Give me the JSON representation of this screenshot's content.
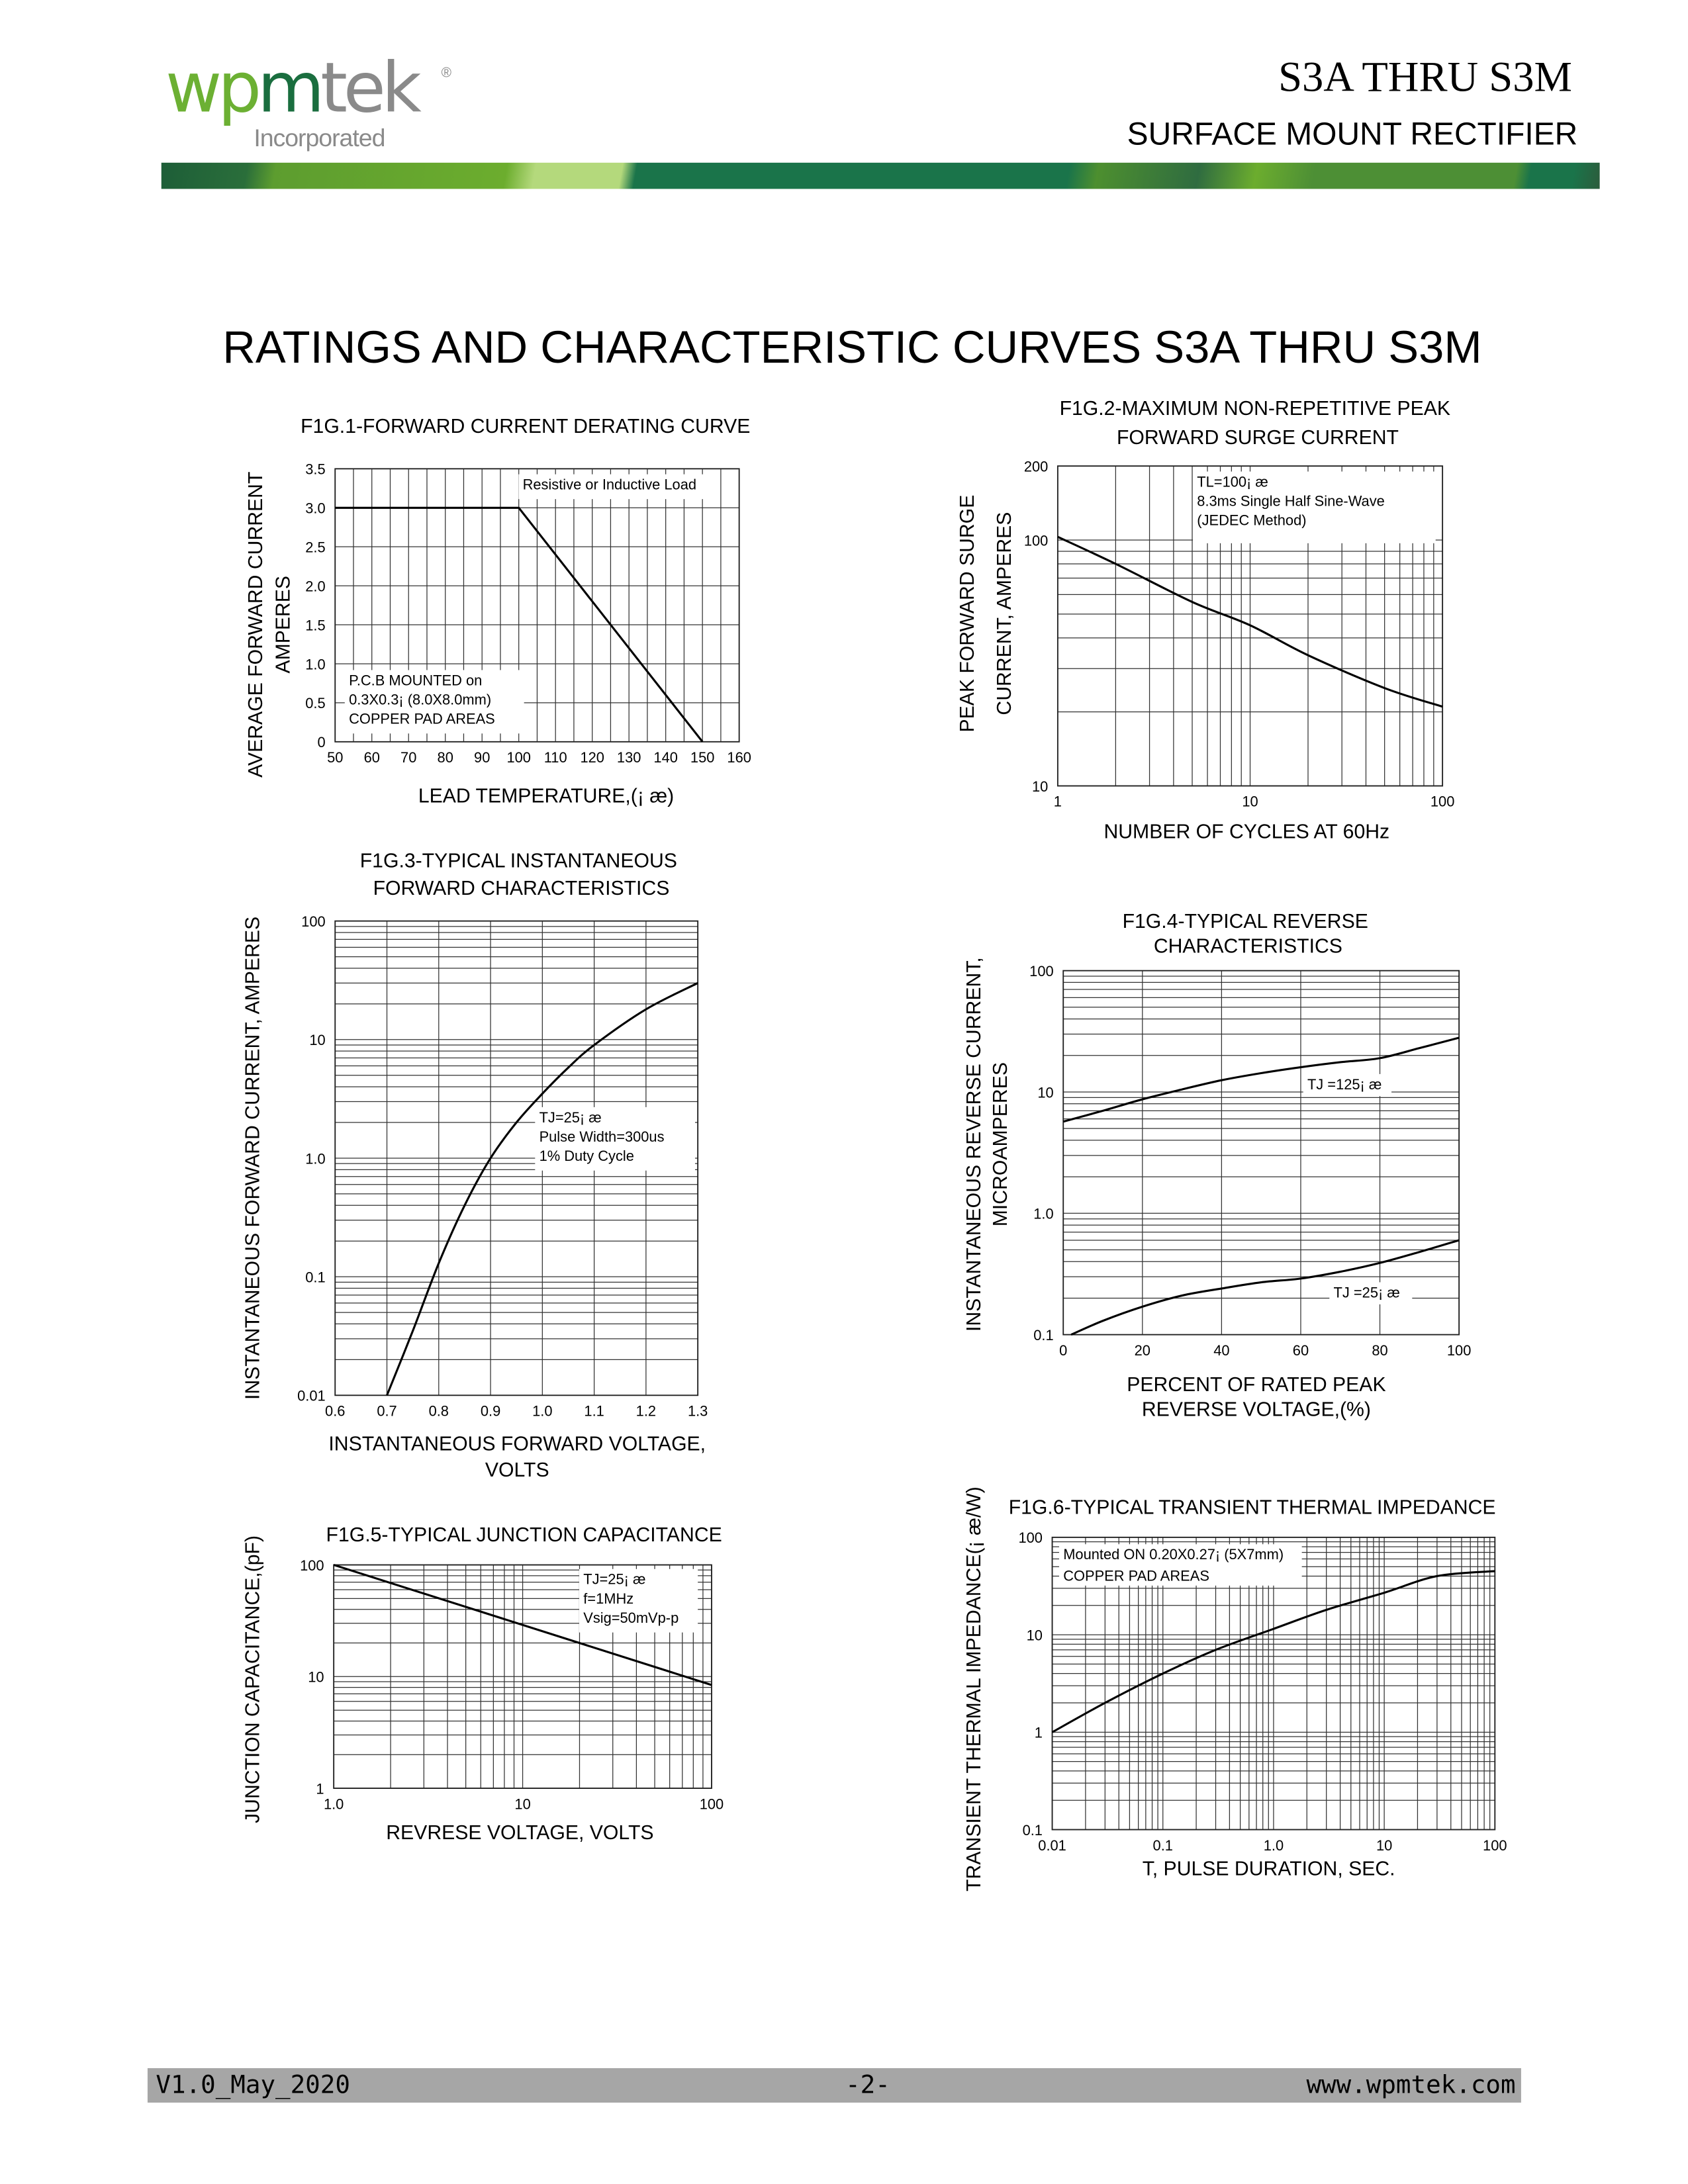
{
  "header": {
    "logo_text": "wpmtek",
    "logo_sub": "Incorporated",
    "logo_reg": "®",
    "model": "S3A THRU S3M",
    "subtitle": "SURFACE MOUNT RECTIFIER"
  },
  "main_title": "RATINGS AND CHARACTERISTIC CURVES S3A THRU S3M",
  "footer": {
    "version": "V1.0_May_2020",
    "page": "-2-",
    "website": "www.wpmtek.com"
  },
  "colors": {
    "brand_green": "#6cb033",
    "brand_dark_green": "#1a6e3f",
    "footer_gray": "#a6a6a6"
  },
  "chart_data": [
    {
      "id": "fig1",
      "type": "line",
      "title": [
        "F1G.1-FORWARD CURRENT DERATING CURVE"
      ],
      "xlabel": [
        "LEAD TEMPERATURE,(¡ æ)"
      ],
      "ylabel": [
        "AVERAGE FORWARD CURRENT",
        "AMPERES"
      ],
      "xscale": "linear",
      "yscale": "linear",
      "xlim": [
        50,
        160
      ],
      "ylim": [
        0,
        3.5
      ],
      "xgrid_step": 5,
      "ygrid_step": 0.5,
      "grid": true,
      "xticks": [
        "50",
        "60",
        "70",
        "80",
        "90",
        "100",
        "110",
        "120",
        "130",
        "140",
        "150",
        "160"
      ],
      "xtick_values": [
        50,
        60,
        70,
        80,
        90,
        100,
        110,
        120,
        130,
        140,
        150,
        160
      ],
      "yticks": [
        "0",
        "0.5",
        "1.0",
        "1.5",
        "2.0",
        "2.5",
        "3.0",
        "3.5"
      ],
      "ytick_values": [
        0,
        0.5,
        1.0,
        1.5,
        2.0,
        2.5,
        3.0,
        3.5
      ],
      "series": [
        {
          "name": "derating",
          "points": [
            [
              50,
              3.0
            ],
            [
              100,
              3.0
            ],
            [
              150,
              0
            ]
          ],
          "smooth": false
        }
      ],
      "annotations": [
        {
          "lines": [
            "Resistive or Inductive Load"
          ]
        },
        {
          "lines": [
            "P.C.B MOUNTED on",
            "0.3X0.3¡ (8.0X8.0mm)",
            "COPPER PAD AREAS"
          ]
        }
      ]
    },
    {
      "id": "fig2",
      "type": "line",
      "title": [
        "F1G.2-MAXIMUM NON-REPETITIVE PEAK",
        "FORWARD SURGE CURRENT"
      ],
      "xlabel": [
        "NUMBER OF CYCLES AT 60Hz"
      ],
      "ylabel": [
        "PEAK FORWARD SURGE",
        "CURRENT, AMPERES"
      ],
      "xscale": "log",
      "yscale": "log",
      "xlim": [
        1,
        100
      ],
      "ylim": [
        10,
        200
      ],
      "grid": true,
      "xticks": [
        "1",
        "10",
        "100"
      ],
      "xtick_values": [
        1,
        10,
        100
      ],
      "yticks": [
        "10",
        "100",
        "200"
      ],
      "ytick_values": [
        10,
        100,
        200
      ],
      "series": [
        {
          "name": "surge",
          "points": [
            [
              1,
              103
            ],
            [
              2,
              80
            ],
            [
              5,
              56
            ],
            [
              10,
              45
            ],
            [
              20,
              34
            ],
            [
              50,
              25
            ],
            [
              100,
              21
            ]
          ],
          "smooth": true
        }
      ],
      "annotations": [
        {
          "lines": [
            "TL=100¡ æ",
            "8.3ms Single Half Sine-Wave",
            "(JEDEC Method)"
          ]
        }
      ]
    },
    {
      "id": "fig3",
      "type": "line",
      "title": [
        "F1G.3-TYPICAL INSTANTANEOUS",
        "FORWARD CHARACTERISTICS"
      ],
      "xlabel": [
        "INSTANTANEOUS FORWARD VOLTAGE,",
        "VOLTS"
      ],
      "ylabel": [
        "INSTANTANEOUS FORWARD CURRENT, AMPERES"
      ],
      "xscale": "linear",
      "yscale": "log",
      "xlim": [
        0.6,
        1.3
      ],
      "ylim": [
        0.01,
        100
      ],
      "xgrid_step": 0.1,
      "grid": true,
      "xticks": [
        "0.6",
        "0.7",
        "0.8",
        "0.9",
        "1.0",
        "1.1",
        "1.2",
        "1.3"
      ],
      "xtick_values": [
        0.6,
        0.7,
        0.8,
        0.9,
        1.0,
        1.1,
        1.2,
        1.3
      ],
      "yticks": [
        "0.01",
        "0.1",
        "1.0",
        "10",
        "100"
      ],
      "ytick_values": [
        0.01,
        0.1,
        1,
        10,
        100
      ],
      "series": [
        {
          "name": "forward",
          "points": [
            [
              0.7,
              0.01
            ],
            [
              0.75,
              0.035
            ],
            [
              0.8,
              0.13
            ],
            [
              0.85,
              0.4
            ],
            [
              0.9,
              1.0
            ],
            [
              0.95,
              2.0
            ],
            [
              1.0,
              3.5
            ],
            [
              1.05,
              5.8
            ],
            [
              1.1,
              9
            ],
            [
              1.2,
              18
            ],
            [
              1.3,
              30
            ]
          ],
          "smooth": true
        }
      ],
      "annotations": [
        {
          "lines": [
            "TJ=25¡ æ",
            "Pulse Width=300us",
            "1% Duty Cycle"
          ]
        }
      ]
    },
    {
      "id": "fig4",
      "type": "line",
      "title": [
        "F1G.4-TYPICAL REVERSE",
        "CHARACTERISTICS"
      ],
      "xlabel": [
        "PERCENT OF RATED PEAK",
        "REVERSE VOLTAGE,(%)"
      ],
      "ylabel": [
        "INSTANTANEOUS REVERSE CURRENT,",
        "MICROAMPERES"
      ],
      "xscale": "linear",
      "yscale": "log",
      "xlim": [
        0,
        100
      ],
      "ylim": [
        0.1,
        100
      ],
      "xgrid_step": 20,
      "grid": true,
      "xticks": [
        "0",
        "20",
        "40",
        "60",
        "80",
        "100"
      ],
      "xtick_values": [
        0,
        20,
        40,
        60,
        80,
        100
      ],
      "yticks": [
        "0.1",
        "1.0",
        "10",
        "100"
      ],
      "ytick_values": [
        0.1,
        1,
        10,
        100
      ],
      "series": [
        {
          "name": "TJ=125",
          "points": [
            [
              0,
              5.7
            ],
            [
              10,
              7
            ],
            [
              20,
              8.7
            ],
            [
              30,
              10.5
            ],
            [
              40,
              12.5
            ],
            [
              50,
              14.3
            ],
            [
              60,
              16
            ],
            [
              70,
              17.6
            ],
            [
              80,
              19
            ],
            [
              90,
              23
            ],
            [
              100,
              28
            ]
          ],
          "smooth": true
        },
        {
          "name": "TJ=25",
          "points": [
            [
              2,
              0.1
            ],
            [
              10,
              0.13
            ],
            [
              20,
              0.17
            ],
            [
              30,
              0.21
            ],
            [
              40,
              0.24
            ],
            [
              50,
              0.27
            ],
            [
              60,
              0.29
            ],
            [
              70,
              0.33
            ],
            [
              80,
              0.39
            ],
            [
              90,
              0.48
            ],
            [
              100,
              0.6
            ]
          ],
          "smooth": true
        }
      ],
      "annotations": [
        {
          "lines": [
            "TJ =125¡ æ"
          ]
        },
        {
          "lines": [
            "TJ =25¡ æ"
          ]
        }
      ]
    },
    {
      "id": "fig5",
      "type": "line",
      "title": [
        "F1G.5-TYPICAL JUNCTION CAPACITANCE"
      ],
      "xlabel": [
        "REVRESE VOLTAGE, VOLTS"
      ],
      "ylabel": [
        "JUNCTION CAPACITANCE,(pF)"
      ],
      "xscale": "log",
      "yscale": "log",
      "xlim": [
        1,
        100
      ],
      "ylim": [
        1,
        100
      ],
      "grid": true,
      "xticks": [
        "1.0",
        "10",
        "100"
      ],
      "xtick_values": [
        1,
        10,
        100
      ],
      "yticks": [
        "1",
        "10",
        "100"
      ],
      "ytick_values": [
        1,
        10,
        100
      ],
      "series": [
        {
          "name": "capacitance",
          "points": [
            [
              1,
              100
            ],
            [
              100,
              8.4
            ]
          ],
          "smooth": false
        }
      ],
      "annotations": [
        {
          "lines": [
            "TJ=25¡ æ",
            "f=1MHz",
            "Vsig=50mVp-p"
          ]
        }
      ]
    },
    {
      "id": "fig6",
      "type": "line",
      "title": [
        "F1G.6-TYPICAL TRANSIENT THERMAL IMPEDANCE"
      ],
      "xlabel": [
        "T, PULSE DURATION, SEC."
      ],
      "ylabel": [
        "TRANSIENT THERMAL IMPEDANCE(¡ æ/W)"
      ],
      "xscale": "log",
      "yscale": "log",
      "xlim": [
        0.01,
        100
      ],
      "ylim": [
        0.1,
        100
      ],
      "grid": true,
      "xticks": [
        "0.01",
        "0.1",
        "1.0",
        "10",
        "100"
      ],
      "xtick_values": [
        0.01,
        0.1,
        1,
        10,
        100
      ],
      "yticks": [
        "0.1",
        "1",
        "10",
        "100"
      ],
      "ytick_values": [
        0.1,
        1,
        10,
        100
      ],
      "series": [
        {
          "name": "impedance",
          "points": [
            [
              0.01,
              1
            ],
            [
              0.03,
              2
            ],
            [
              0.1,
              4
            ],
            [
              0.3,
              7
            ],
            [
              1,
              11.5
            ],
            [
              3,
              18
            ],
            [
              10,
              27
            ],
            [
              30,
              40
            ],
            [
              100,
              45
            ]
          ],
          "smooth": true
        }
      ],
      "annotations": [
        {
          "lines": [
            "Mounted ON 0.20X0.27¡ (5X7mm)",
            "COPPER PAD AREAS"
          ]
        }
      ]
    }
  ]
}
